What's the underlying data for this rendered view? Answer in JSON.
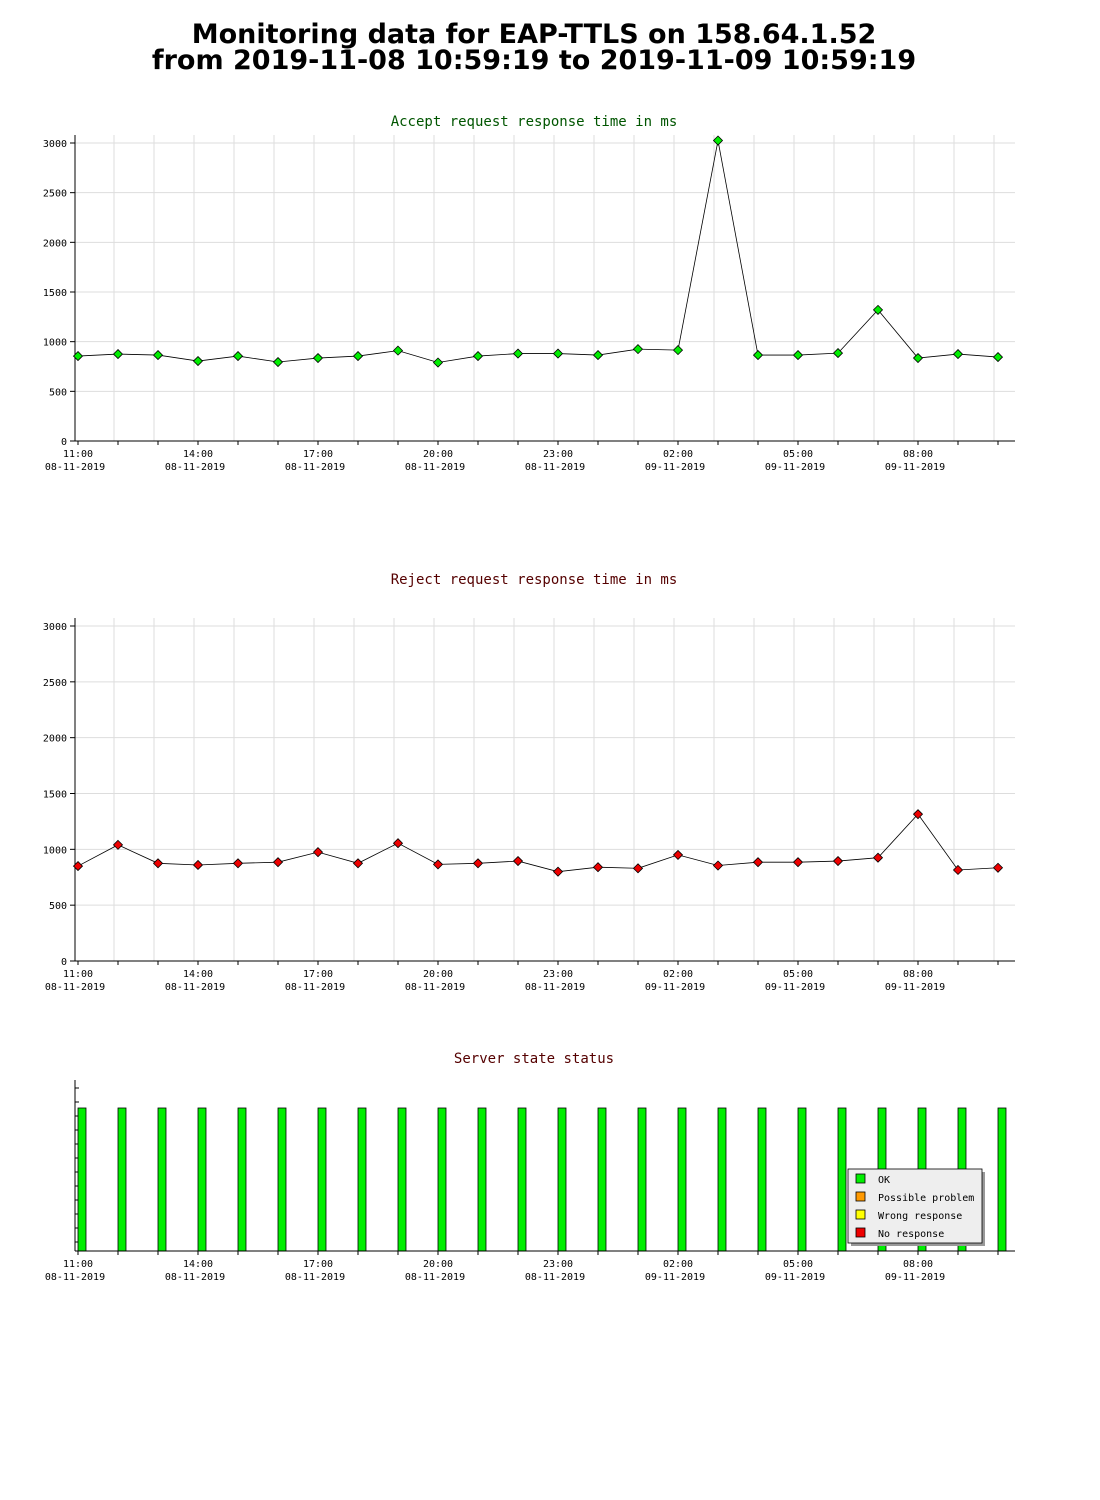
{
  "page": {
    "title_line1": "Monitoring data for EAP-TTLS on 158.64.1.52",
    "title_line2": "from 2019-11-08 10:59:19 to 2019-11-09 10:59:19"
  },
  "colors": {
    "accept_title": "#005500",
    "reject_title": "#550000",
    "status_title": "#550000",
    "accept_marker": "#00ee00",
    "reject_marker": "#ee0000",
    "ok": "#00ee00",
    "possible_problem": "#ff9900",
    "wrong_response": "#ffff00",
    "no_response": "#ee0000",
    "grid": "#dddddd"
  },
  "x_ticks": [
    {
      "time": "11:00",
      "date": "08-11-2019"
    },
    {
      "time": "14:00",
      "date": "08-11-2019"
    },
    {
      "time": "17:00",
      "date": "08-11-2019"
    },
    {
      "time": "20:00",
      "date": "08-11-2019"
    },
    {
      "time": "23:00",
      "date": "08-11-2019"
    },
    {
      "time": "02:00",
      "date": "09-11-2019"
    },
    {
      "time": "05:00",
      "date": "09-11-2019"
    },
    {
      "time": "08:00",
      "date": "09-11-2019"
    }
  ],
  "chart_data": [
    {
      "type": "line",
      "title": "Accept request response time in ms",
      "x": [
        "10:59",
        "11:59",
        "12:59",
        "13:59",
        "14:59",
        "15:59",
        "16:59",
        "17:59",
        "18:59",
        "19:59",
        "20:59",
        "21:59",
        "22:59",
        "23:59",
        "00:59",
        "01:59",
        "02:59",
        "03:59",
        "04:59",
        "05:59",
        "06:59",
        "07:59",
        "08:59",
        "09:59"
      ],
      "values": [
        855,
        875,
        865,
        805,
        855,
        795,
        835,
        855,
        910,
        790,
        855,
        880,
        880,
        865,
        925,
        915,
        3025,
        865,
        865,
        885,
        1320,
        835,
        875,
        845
      ],
      "ylim": [
        0,
        3000
      ],
      "yticks": [
        0,
        500,
        1000,
        1500,
        2000,
        2500,
        3000
      ],
      "grid": true
    },
    {
      "type": "line",
      "title": "Reject request response time in ms",
      "x": [
        "10:59",
        "11:59",
        "12:59",
        "13:59",
        "14:59",
        "15:59",
        "16:59",
        "17:59",
        "18:59",
        "19:59",
        "20:59",
        "21:59",
        "22:59",
        "23:59",
        "00:59",
        "01:59",
        "02:59",
        "03:59",
        "04:59",
        "05:59",
        "06:59",
        "07:59",
        "08:59",
        "09:59"
      ],
      "values": [
        850,
        1040,
        875,
        860,
        875,
        885,
        975,
        875,
        1055,
        865,
        875,
        895,
        800,
        840,
        830,
        950,
        855,
        885,
        885,
        895,
        925,
        1315,
        815,
        835
      ],
      "ylim": [
        0,
        3000
      ],
      "yticks": [
        0,
        500,
        1000,
        1500,
        2000,
        2500,
        3000
      ],
      "grid": true
    },
    {
      "type": "bar",
      "title": "Server state status",
      "x": [
        "10:59",
        "11:59",
        "12:59",
        "13:59",
        "14:59",
        "15:59",
        "16:59",
        "17:59",
        "18:59",
        "19:59",
        "20:59",
        "21:59",
        "22:59",
        "23:59",
        "00:59",
        "01:59",
        "02:59",
        "03:59",
        "04:59",
        "05:59",
        "06:59",
        "07:59",
        "08:59",
        "09:59"
      ],
      "states": [
        "OK",
        "OK",
        "OK",
        "OK",
        "OK",
        "OK",
        "OK",
        "OK",
        "OK",
        "OK",
        "OK",
        "OK",
        "OK",
        "OK",
        "OK",
        "OK",
        "OK",
        "OK",
        "OK",
        "OK",
        "OK",
        "OK",
        "OK",
        "OK"
      ],
      "legend": [
        "OK",
        "Possible problem",
        "Wrong response",
        "No response"
      ],
      "legend_position": "bottom-right"
    }
  ]
}
